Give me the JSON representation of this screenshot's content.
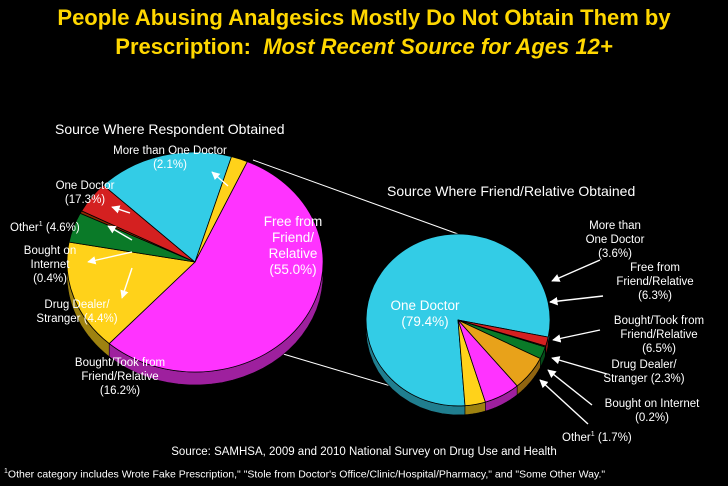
{
  "title": {
    "line1": "People Abusing Analgesics Mostly Do Not Obtain Them by",
    "line2_a": "Prescription:",
    "line2_b": "Most Recent Source for Ages 12+"
  },
  "colors": {
    "background": "#000000",
    "title": "#FFD700",
    "text": "#FFFFFF",
    "magenta": "#FF33FF",
    "cyan": "#33CCE6",
    "yellow": "#FFD21A",
    "green": "#0A7A28",
    "red": "#D42020",
    "brown": "#8B2A00",
    "orange": "#E8A21A",
    "rim": "#000000"
  },
  "chart_data": [
    {
      "type": "pie",
      "title": "Source Where Respondent Obtained",
      "unit": "%",
      "slices": [
        {
          "label": "Free from Friend/Relative",
          "value": 55.0,
          "display": "(55.0%)",
          "color": "magenta"
        },
        {
          "label": "Bought/Took from Friend/Relative",
          "value": 16.2,
          "display": "(16.2%)",
          "color": "yellow"
        },
        {
          "label": "Drug Dealer/Stranger",
          "value": 4.4,
          "display": "(4.4%)",
          "color": "green"
        },
        {
          "label": "Bought on Internet",
          "value": 0.4,
          "display": "(0.4%)",
          "color": "brown"
        },
        {
          "label": "Other",
          "value": 4.6,
          "display": "(4.6%)",
          "color": "red"
        },
        {
          "label": "One Doctor",
          "value": 17.3,
          "display": "(17.3%)",
          "color": "cyan"
        },
        {
          "label": "More than One Doctor",
          "value": 2.1,
          "display": "(2.1%)",
          "color": "yellow"
        }
      ]
    },
    {
      "type": "pie",
      "title": "Source Where Friend/Relative Obtained",
      "unit": "%",
      "slices": [
        {
          "label": "One Doctor",
          "value": 79.4,
          "display": "(79.4%)",
          "color": "cyan"
        },
        {
          "label": "More than One Doctor",
          "value": 3.6,
          "display": "(3.6%)",
          "color": "yellow"
        },
        {
          "label": "Free from Friend/Relative",
          "value": 6.3,
          "display": "(6.3%)",
          "color": "magenta"
        },
        {
          "label": "Bought/Took from Friend/Relative",
          "value": 6.5,
          "display": "(6.5%)",
          "color": "orange"
        },
        {
          "label": "Drug Dealer/Stranger",
          "value": 2.3,
          "display": "(2.3%)",
          "color": "green"
        },
        {
          "label": "Bought on Internet",
          "value": 0.2,
          "display": "(0.2%)",
          "color": "brown"
        },
        {
          "label": "Other",
          "value": 1.7,
          "display": "(1.7%)",
          "color": "red"
        }
      ]
    }
  ],
  "labels": {
    "left": {
      "more_doctor_1": "More than One Doctor",
      "more_doctor_2": "(2.1%)",
      "one_doctor_1": "One Doctor",
      "one_doctor_2": "(17.3%)",
      "other_name": "Other",
      "other_mark": "1",
      "other_pct": "(4.6%)",
      "internet_1": "Bought on",
      "internet_2": "Internet",
      "internet_3": "(0.4%)",
      "dealer_1": "Drug Dealer/",
      "dealer_2": "Stranger (4.4%)",
      "bought_1": "Bought/Took from",
      "bought_2": "Friend/Relative",
      "bought_3": "(16.2%)",
      "free_1": "Free from",
      "free_2": "Friend/",
      "free_3": "Relative",
      "free_4": "(55.0%)"
    },
    "right": {
      "one_doctor_1": "One Doctor",
      "one_doctor_2": "(79.4%)",
      "more_1": "More than",
      "more_2": "One Doctor",
      "more_3": "(3.6%)",
      "free_1": "Free from",
      "free_2": "Friend/Relative",
      "free_3": "(6.3%)",
      "bought_1": "Bought/Took from",
      "bought_2": "Friend/Relative",
      "bought_3": "(6.5%)",
      "dealer_1": "Drug Dealer/",
      "dealer_2": "Stranger (2.3%)",
      "internet_1": "Bought on Internet",
      "internet_2": "(0.2%)",
      "other_name": "Other",
      "other_mark": "1",
      "other_pct": "(1.7%)"
    }
  },
  "source": "Source:  SAMHSA, 2009 and 2010 National Survey on Drug Use and Health",
  "footnote": {
    "mark": "1",
    "text": "Other category includes Wrote Fake Prescription,\" \"Stole from Doctor's Office/Clinic/Hospital/Pharmacy,\" and \"Some Other Way.\""
  }
}
